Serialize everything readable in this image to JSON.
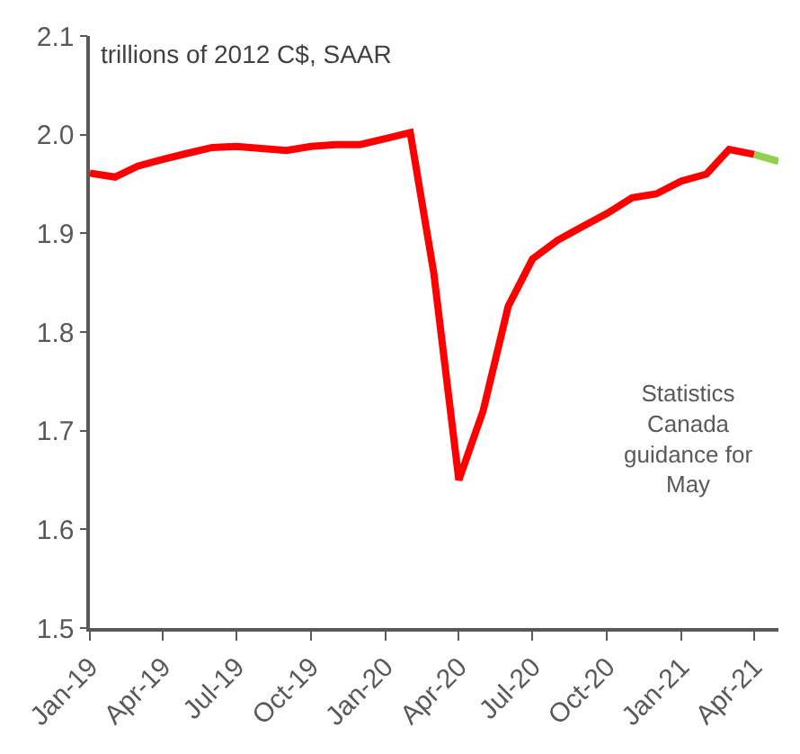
{
  "chart_data": {
    "type": "line",
    "ylabel": "trillions of 2012 C$, SAAR",
    "series": [
      {
        "color": "#ff0000",
        "x": [
          "2019-01",
          "2019-02",
          "2019-03",
          "2019-04",
          "2019-05",
          "2019-06",
          "2019-07",
          "2019-08",
          "2019-09",
          "2019-10",
          "2019-11",
          "2019-12",
          "2020-01",
          "2020-02",
          "2020-03",
          "2020-04",
          "2020-05",
          "2020-06",
          "2020-07",
          "2020-08",
          "2020-09",
          "2020-10",
          "2020-11",
          "2020-12",
          "2021-01",
          "2021-02",
          "2021-03",
          "2021-04"
        ],
        "values": [
          1.961,
          1.957,
          1.968,
          1.975,
          1.981,
          1.987,
          1.988,
          1.986,
          1.984,
          1.988,
          1.99,
          1.99,
          1.996,
          2.002,
          1.86,
          1.65,
          1.72,
          1.826,
          1.874,
          1.893,
          1.907,
          1.92,
          1.936,
          1.94,
          1.953,
          1.96,
          1.985,
          1.98
        ]
      },
      {
        "color": "#92d050",
        "x": [
          "2021-04",
          "2021-05"
        ],
        "values": [
          1.98,
          1.973
        ]
      }
    ],
    "annotations": [
      "Statistics Canada guidance for May"
    ],
    "xlim": [
      "2019-01",
      "2021-05"
    ],
    "xticks": [
      {
        "value": "2019-01",
        "label": "Jan-19"
      },
      {
        "value": "2019-04",
        "label": "Apr-19"
      },
      {
        "value": "2019-07",
        "label": "Jul-19"
      },
      {
        "value": "2019-10",
        "label": "Oct-19"
      },
      {
        "value": "2020-01",
        "label": "Jan-20"
      },
      {
        "value": "2020-04",
        "label": "Apr-20"
      },
      {
        "value": "2020-07",
        "label": "Jul-20"
      },
      {
        "value": "2020-10",
        "label": "Oct-20"
      },
      {
        "value": "2021-01",
        "label": "Jan-21"
      },
      {
        "value": "2021-04",
        "label": "Apr-21"
      }
    ],
    "ylim": [
      1.5,
      2.1
    ],
    "yticks": [
      {
        "value": 1.5,
        "label": "1.5"
      },
      {
        "value": 1.6,
        "label": "1.6"
      },
      {
        "value": 1.7,
        "label": "1.7"
      },
      {
        "value": 1.8,
        "label": "1.8"
      },
      {
        "value": 1.9,
        "label": "1.9"
      },
      {
        "value": 2.0,
        "label": "2.0"
      },
      {
        "value": 2.1,
        "label": "2.1"
      }
    ],
    "marker": "none",
    "line_style": "solid"
  }
}
